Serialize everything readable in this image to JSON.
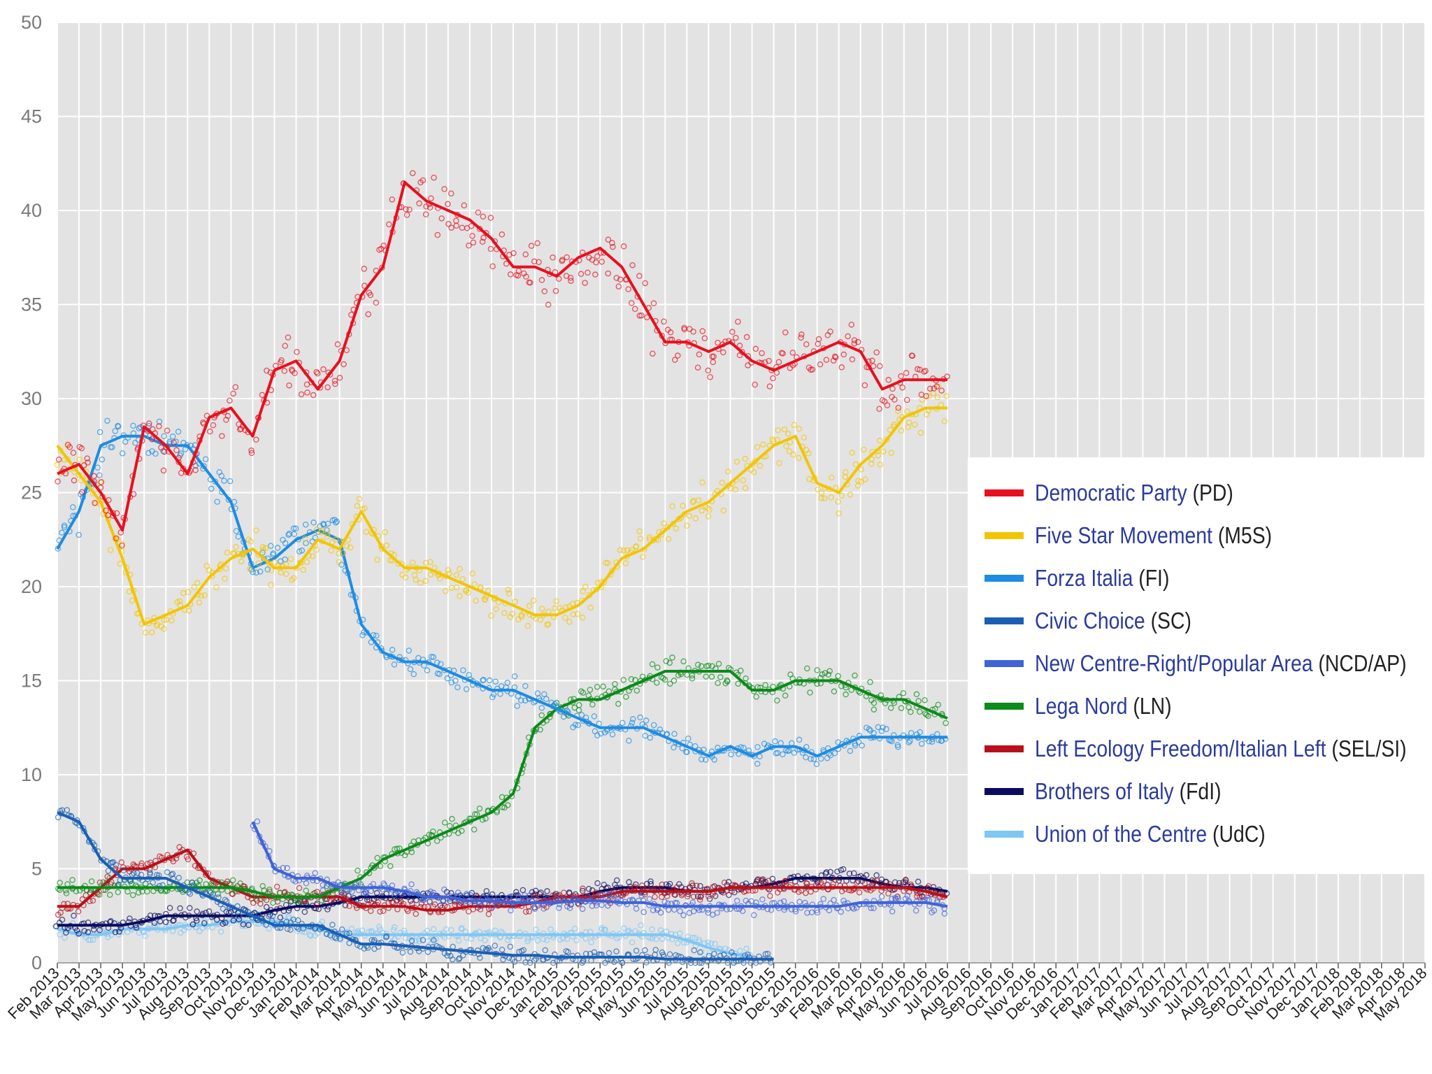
{
  "chart_data": {
    "type": "scatter",
    "ylim": [
      0,
      50
    ],
    "yticks": [
      "0",
      "5",
      "10",
      "15",
      "20",
      "25",
      "30",
      "35",
      "40",
      "45",
      "50"
    ],
    "categories": [
      "Feb 2013",
      "Mar 2013",
      "Apr 2013",
      "May 2013",
      "Jun 2013",
      "Jul 2013",
      "Aug 2013",
      "Sep 2013",
      "Oct 2013",
      "Nov 2013",
      "Dec 2013",
      "Jan 2014",
      "Feb 2014",
      "Mar 2014",
      "Apr 2014",
      "May 2014",
      "Jun 2014",
      "Jul 2014",
      "Aug 2014",
      "Sep 2014",
      "Oct 2014",
      "Nov 2014",
      "Dec 2014",
      "Jan 2015",
      "Feb 2015",
      "Mar 2015",
      "Apr 2015",
      "May 2015",
      "Jun 2015",
      "Jul 2015",
      "Aug 2015",
      "Sep 2015",
      "Oct 2015",
      "Nov 2015",
      "Dec 2015",
      "Jan 2016",
      "Feb 2016",
      "Mar 2016",
      "Apr 2016",
      "May 2016",
      "Jun 2016",
      "Jul 2016",
      "Aug 2016",
      "Sep 2016",
      "Oct 2016",
      "Nov 2016",
      "Dec 2016",
      "Jan 2017",
      "Feb 2017",
      "Mar 2017",
      "Apr 2017",
      "May 2017",
      "Jun 2017",
      "Jul 2017",
      "Aug 2017",
      "Sep 2017",
      "Oct 2017",
      "Nov 2017",
      "Dec 2017",
      "Jan 2018",
      "Feb 2018",
      "Mar 2018",
      "Apr 2018",
      "May 2018"
    ],
    "grid": true,
    "legend_position": "right",
    "series": [
      {
        "name": "Democratic Party",
        "abbr": "(PD)",
        "color": "#e8101e",
        "values": [
          26,
          26.5,
          25,
          23,
          28.5,
          27.5,
          26,
          29,
          29.5,
          28,
          31.5,
          32,
          30.5,
          32,
          35.5,
          37,
          41.5,
          40.5,
          40,
          39.5,
          38.5,
          37,
          37,
          36.5,
          37.5,
          38,
          37,
          35,
          33,
          33,
          32.5,
          33,
          32,
          31.5,
          32,
          32.5,
          33,
          32.5,
          30.5,
          31,
          31,
          31
        ]
      },
      {
        "name": "Five Star Movement",
        "abbr": "(M5S)",
        "color": "#f2c500",
        "values": [
          27.5,
          26,
          24.5,
          21.5,
          18,
          18.5,
          19,
          20.5,
          21.5,
          22,
          21,
          21,
          22.5,
          22,
          24,
          22,
          21,
          21,
          20.5,
          20,
          19.5,
          19,
          18.5,
          18.5,
          19,
          20,
          21.5,
          22,
          23,
          24,
          24.5,
          25.5,
          26.5,
          27.5,
          28,
          25.5,
          25,
          26.5,
          27.5,
          29,
          29.5,
          29.5
        ]
      },
      {
        "name": "Forza Italia",
        "abbr": "(FI)",
        "color": "#1e8ce2",
        "values": [
          22,
          24,
          27.5,
          28,
          28,
          27.5,
          27.5,
          26,
          24.5,
          21,
          21.5,
          22.5,
          23,
          22.5,
          18,
          16.5,
          16,
          16,
          15.5,
          15,
          14.5,
          14.5,
          14,
          13.5,
          13,
          12.5,
          12.5,
          12.5,
          12,
          11.5,
          11,
          11.5,
          11,
          11.5,
          11.5,
          11,
          11.5,
          12,
          12,
          12,
          12,
          12
        ]
      },
      {
        "name": "Civic Choice",
        "abbr": "(SC)",
        "color": "#1a5fb4",
        "values": [
          8,
          7.5,
          5.5,
          4.5,
          4.5,
          4.5,
          4,
          3.5,
          3,
          2.5,
          2,
          2,
          2,
          1.5,
          1,
          1,
          0.9,
          0.8,
          0.7,
          0.6,
          0.5,
          0.4,
          0.4,
          0.3,
          0.3,
          0.3,
          0.3,
          0.3,
          0.2,
          0.2,
          0.2,
          0.2,
          0.2,
          0.2
        ]
      },
      {
        "name": "New Centre-Right/Popular Area",
        "abbr": "(NCD/AP)",
        "color": "#3f63d8",
        "values": [
          null,
          null,
          null,
          null,
          null,
          null,
          null,
          null,
          null,
          7.5,
          5,
          4.5,
          4.5,
          4,
          4,
          4,
          3.8,
          3.5,
          3.5,
          3.3,
          3.3,
          3.2,
          3.2,
          3.2,
          3.3,
          3.3,
          3.2,
          3.2,
          3,
          3,
          3,
          3,
          3,
          3,
          3,
          3,
          3,
          3.2,
          3.2,
          3.2,
          3.2,
          3
        ]
      },
      {
        "name": "Lega Nord",
        "abbr": "(LN)",
        "color": "#0c8a1a",
        "values": [
          4,
          4,
          4,
          4,
          4,
          4,
          4,
          4,
          4,
          3.8,
          3.5,
          3.5,
          3.5,
          4,
          4.5,
          5.5,
          6,
          6.5,
          7,
          7.5,
          8,
          9,
          12.5,
          13.5,
          14,
          14,
          14.5,
          15,
          15.5,
          15.5,
          15.5,
          15.5,
          14.5,
          14.5,
          15,
          15,
          15,
          14.5,
          14,
          14,
          13.5,
          13
        ]
      },
      {
        "name": "Left Ecology Freedom/Italian Left",
        "abbr": "(SEL/SI)",
        "color": "#b8101a",
        "values": [
          3,
          3,
          4,
          5,
          5,
          5.5,
          6,
          4.5,
          4,
          3.5,
          3.5,
          3.5,
          3.5,
          3.5,
          3,
          3,
          3,
          2.8,
          2.8,
          3,
          3,
          3,
          3.2,
          3.5,
          3.5,
          3.5,
          3.8,
          3.8,
          3.8,
          3.8,
          3.8,
          4,
          4,
          4,
          4,
          4,
          4,
          4,
          4,
          4,
          3.8,
          3.5
        ]
      },
      {
        "name": "Brothers of Italy",
        "abbr": "(FdI)",
        "color": "#0b0b5e",
        "values": [
          2,
          2,
          2,
          2,
          2.2,
          2.5,
          2.5,
          2.5,
          2.5,
          2.5,
          2.8,
          3,
          3,
          3.2,
          3.5,
          3.5,
          3.5,
          3.5,
          3.5,
          3.5,
          3.5,
          3.5,
          3.5,
          3.5,
          3.5,
          3.8,
          4,
          4,
          4,
          3.8,
          3.8,
          4,
          4,
          4.2,
          4.5,
          4.5,
          4.5,
          4.5,
          4.2,
          4,
          4,
          3.8
        ]
      },
      {
        "name": "Union of the Centre",
        "abbr": "(UdC)",
        "color": "#7fc6f3",
        "values": [
          1.8,
          1.5,
          1.5,
          1.8,
          1.8,
          1.8,
          2,
          2,
          2.2,
          2.2,
          2.2,
          2,
          1.8,
          1.5,
          1.5,
          1.5,
          1.5,
          1.5,
          1.5,
          1.5,
          1.5,
          1.5,
          1.5,
          1.5,
          1.5,
          1.5,
          1.5,
          1.5,
          1.5,
          1.2,
          0.8,
          0.5,
          0.3
        ]
      }
    ]
  }
}
